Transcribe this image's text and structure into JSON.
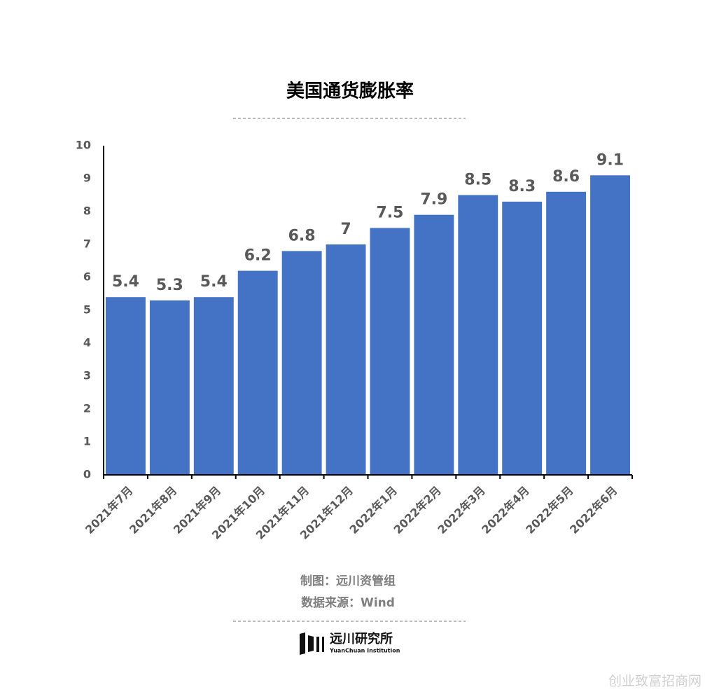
{
  "chart_data": {
    "type": "bar",
    "title": "美国通货膨胀率",
    "categories": [
      "2021年7月",
      "2021年8月",
      "2021年9月",
      "2021年10月",
      "2021年11月",
      "2021年12月",
      "2022年1月",
      "2022年2月",
      "2022年3月",
      "2022年4月",
      "2022年5月",
      "2022年6月"
    ],
    "values": [
      5.4,
      5.3,
      5.4,
      6.2,
      6.8,
      7,
      7.5,
      7.9,
      8.5,
      8.3,
      8.6,
      9.1
    ],
    "color": "#4472c4",
    "ylim": [
      0,
      10
    ],
    "yticks": [
      0,
      1,
      2,
      3,
      4,
      5,
      6,
      7,
      8,
      9,
      10
    ],
    "grid": false
  },
  "footer": {
    "credit": "制图：远川资管组",
    "source": "数据来源：Wind"
  },
  "logo": {
    "name": "远川研究所",
    "subtitle": "YuanChuan Institution"
  },
  "watermark": "创业致富招商网"
}
